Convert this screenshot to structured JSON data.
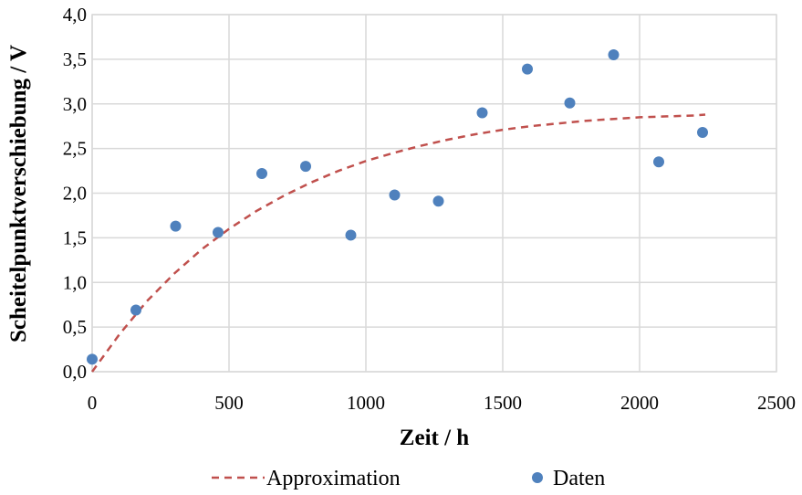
{
  "chart_data": {
    "type": "scatter",
    "title": "",
    "xlabel": "Zeit / h",
    "ylabel": "Scheitelpunktverschiebung / V",
    "xlim": [
      0,
      2500
    ],
    "ylim": [
      0,
      4
    ],
    "xticks": [
      0,
      500,
      1000,
      1500,
      2000,
      2500
    ],
    "xtick_labels": [
      "0",
      "500",
      "1000",
      "1500",
      "2000",
      "2500"
    ],
    "yticks": [
      0,
      0.5,
      1,
      1.5,
      2,
      2.5,
      3,
      3.5,
      4
    ],
    "ytick_labels": [
      "0,0",
      "0,5",
      "1,0",
      "1,5",
      "2,0",
      "2,5",
      "3,0",
      "3,5",
      "4,0"
    ],
    "grid": true,
    "legend_position": "bottom",
    "series": [
      {
        "name": "Approximation",
        "kind": "line",
        "style": "dashed",
        "color": "#c0504d",
        "x": [
          0,
          100,
          200,
          300,
          400,
          500,
          600,
          700,
          800,
          900,
          1000,
          1100,
          1200,
          1300,
          1400,
          1500,
          1600,
          1700,
          1800,
          1900,
          2000,
          2100,
          2200,
          2240
        ],
        "y": [
          0.0,
          0.42,
          0.79,
          1.1,
          1.37,
          1.6,
          1.8,
          1.97,
          2.12,
          2.25,
          2.36,
          2.45,
          2.53,
          2.6,
          2.66,
          2.71,
          2.75,
          2.78,
          2.81,
          2.83,
          2.85,
          2.86,
          2.87,
          2.88
        ]
      },
      {
        "name": "Daten",
        "kind": "scatter",
        "color": "#4f81bd",
        "x": [
          0,
          160,
          305,
          460,
          620,
          780,
          945,
          1105,
          1265,
          1425,
          1590,
          1745,
          1905,
          2070,
          2230
        ],
        "y": [
          0.14,
          0.69,
          1.63,
          1.56,
          2.22,
          2.3,
          1.53,
          1.98,
          1.91,
          2.9,
          3.39,
          3.01,
          3.55,
          2.35,
          2.68
        ]
      }
    ]
  }
}
